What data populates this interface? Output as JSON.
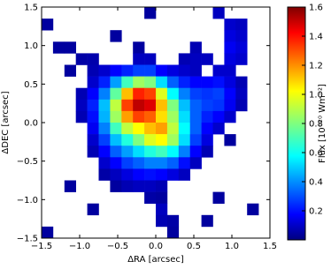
{
  "chart_data": {
    "type": "heatmap",
    "x_label": "ΔRA [arcsec]",
    "y_label": "ΔDEC [arcsec]",
    "colorbar_label": "Flux [10⁻²⁰ Wm⁻²]",
    "colormap": "jet",
    "xlim": [
      -1.5,
      1.5
    ],
    "ylim": [
      -1.5,
      1.5
    ],
    "xticks": [
      {
        "value": -1.5,
        "label": "−1.5"
      },
      {
        "value": -1,
        "label": "−1.0"
      },
      {
        "value": -0.5,
        "label": "−0.5"
      },
      {
        "value": 0,
        "label": "0.0"
      },
      0.5,
      {
        "value": 1,
        "label": "1.0"
      },
      1.5
    ],
    "yticks": [
      {
        "value": -1.5,
        "label": "−1.5"
      },
      {
        "value": -1,
        "label": "−1.0"
      },
      {
        "value": -0.5,
        "label": "−0.5"
      },
      {
        "value": 0,
        "label": "0.0"
      },
      0.5,
      {
        "value": 1,
        "label": "1.0"
      },
      1.5
    ],
    "clim": [
      0,
      1.6
    ],
    "cticks": [
      0.2,
      0.4,
      0.6,
      0.8,
      {
        "value": 1,
        "label": "1.0"
      },
      1.2,
      1.4,
      1.6
    ],
    "z": [
      [
        null,
        null,
        null,
        null,
        null,
        null,
        null,
        null,
        null,
        0.05,
        null,
        null,
        null,
        null,
        null,
        0.1,
        null,
        null,
        null,
        null
      ],
      [
        0.05,
        null,
        null,
        null,
        null,
        null,
        null,
        null,
        null,
        null,
        null,
        null,
        null,
        null,
        null,
        null,
        0.12,
        0.1,
        null,
        null
      ],
      [
        null,
        null,
        null,
        null,
        null,
        null,
        0.05,
        null,
        null,
        null,
        null,
        null,
        null,
        null,
        null,
        null,
        0.15,
        0.12,
        null,
        null
      ],
      [
        null,
        0.05,
        0.05,
        null,
        null,
        null,
        null,
        null,
        0.05,
        null,
        null,
        null,
        null,
        0.08,
        null,
        null,
        0.18,
        0.14,
        null,
        null
      ],
      [
        null,
        null,
        null,
        0.06,
        0.07,
        null,
        null,
        null,
        0.1,
        0.1,
        null,
        null,
        0.08,
        0.1,
        0.1,
        null,
        0.15,
        0.12,
        null,
        null
      ],
      [
        null,
        null,
        0.05,
        null,
        0.08,
        0.12,
        0.2,
        0.25,
        0.3,
        0.3,
        0.2,
        0.15,
        0.12,
        0.1,
        null,
        0.12,
        0.12,
        null,
        null,
        null
      ],
      [
        null,
        null,
        null,
        null,
        0.12,
        0.25,
        0.45,
        0.7,
        0.85,
        0.8,
        0.55,
        0.35,
        0.25,
        0.2,
        0.2,
        0.22,
        0.15,
        0.08,
        null,
        null
      ],
      [
        null,
        null,
        null,
        0.08,
        0.2,
        0.4,
        0.75,
        1.1,
        1.35,
        1.3,
        0.95,
        0.6,
        0.4,
        0.3,
        0.28,
        0.3,
        0.2,
        0.1,
        null,
        null
      ],
      [
        null,
        null,
        null,
        0.1,
        0.25,
        0.5,
        0.9,
        1.3,
        1.5,
        1.45,
        1.1,
        0.8,
        0.5,
        0.35,
        0.3,
        0.28,
        0.18,
        0.08,
        null,
        null
      ],
      [
        null,
        null,
        null,
        0.08,
        0.22,
        0.48,
        0.85,
        1.15,
        1.3,
        1.25,
        1.05,
        0.85,
        0.55,
        0.35,
        0.25,
        0.2,
        0.12,
        null,
        null,
        null
      ],
      [
        null,
        null,
        null,
        null,
        0.18,
        0.4,
        0.7,
        0.9,
        1.0,
        1.1,
        1.15,
        0.9,
        0.6,
        0.35,
        0.2,
        0.12,
        null,
        null,
        null,
        null
      ],
      [
        null,
        null,
        null,
        null,
        0.12,
        0.3,
        0.5,
        0.65,
        0.8,
        0.95,
        1.0,
        0.85,
        0.55,
        0.3,
        0.15,
        null,
        0.05,
        null,
        null,
        null
      ],
      [
        null,
        null,
        null,
        null,
        0.08,
        0.2,
        0.35,
        0.45,
        0.55,
        0.65,
        0.7,
        0.6,
        0.4,
        0.2,
        0.08,
        null,
        null,
        null,
        null,
        null
      ],
      [
        null,
        null,
        null,
        null,
        null,
        0.12,
        0.2,
        0.3,
        0.35,
        0.4,
        0.4,
        0.35,
        0.22,
        0.1,
        null,
        null,
        null,
        null,
        null,
        null
      ],
      [
        null,
        null,
        null,
        null,
        null,
        0.06,
        0.1,
        0.15,
        0.2,
        0.22,
        0.2,
        0.15,
        0.1,
        null,
        null,
        null,
        null,
        null,
        null,
        null
      ],
      [
        null,
        null,
        0.05,
        null,
        null,
        null,
        0.05,
        0.08,
        0.1,
        0.1,
        0.08,
        null,
        null,
        null,
        null,
        null,
        null,
        null,
        null,
        null
      ],
      [
        null,
        null,
        null,
        null,
        null,
        null,
        null,
        null,
        null,
        0.06,
        0.05,
        null,
        null,
        null,
        null,
        0.05,
        null,
        null,
        null,
        null
      ],
      [
        null,
        null,
        null,
        null,
        0.05,
        null,
        null,
        null,
        null,
        null,
        0.1,
        null,
        null,
        null,
        null,
        null,
        null,
        null,
        0.05,
        null
      ],
      [
        null,
        null,
        null,
        null,
        null,
        null,
        null,
        null,
        null,
        null,
        0.08,
        0.06,
        null,
        null,
        0.05,
        null,
        null,
        null,
        null,
        null
      ],
      [
        0.05,
        null,
        null,
        null,
        null,
        null,
        null,
        null,
        null,
        null,
        null,
        0.05,
        null,
        null,
        null,
        null,
        null,
        null,
        null,
        null
      ]
    ]
  }
}
